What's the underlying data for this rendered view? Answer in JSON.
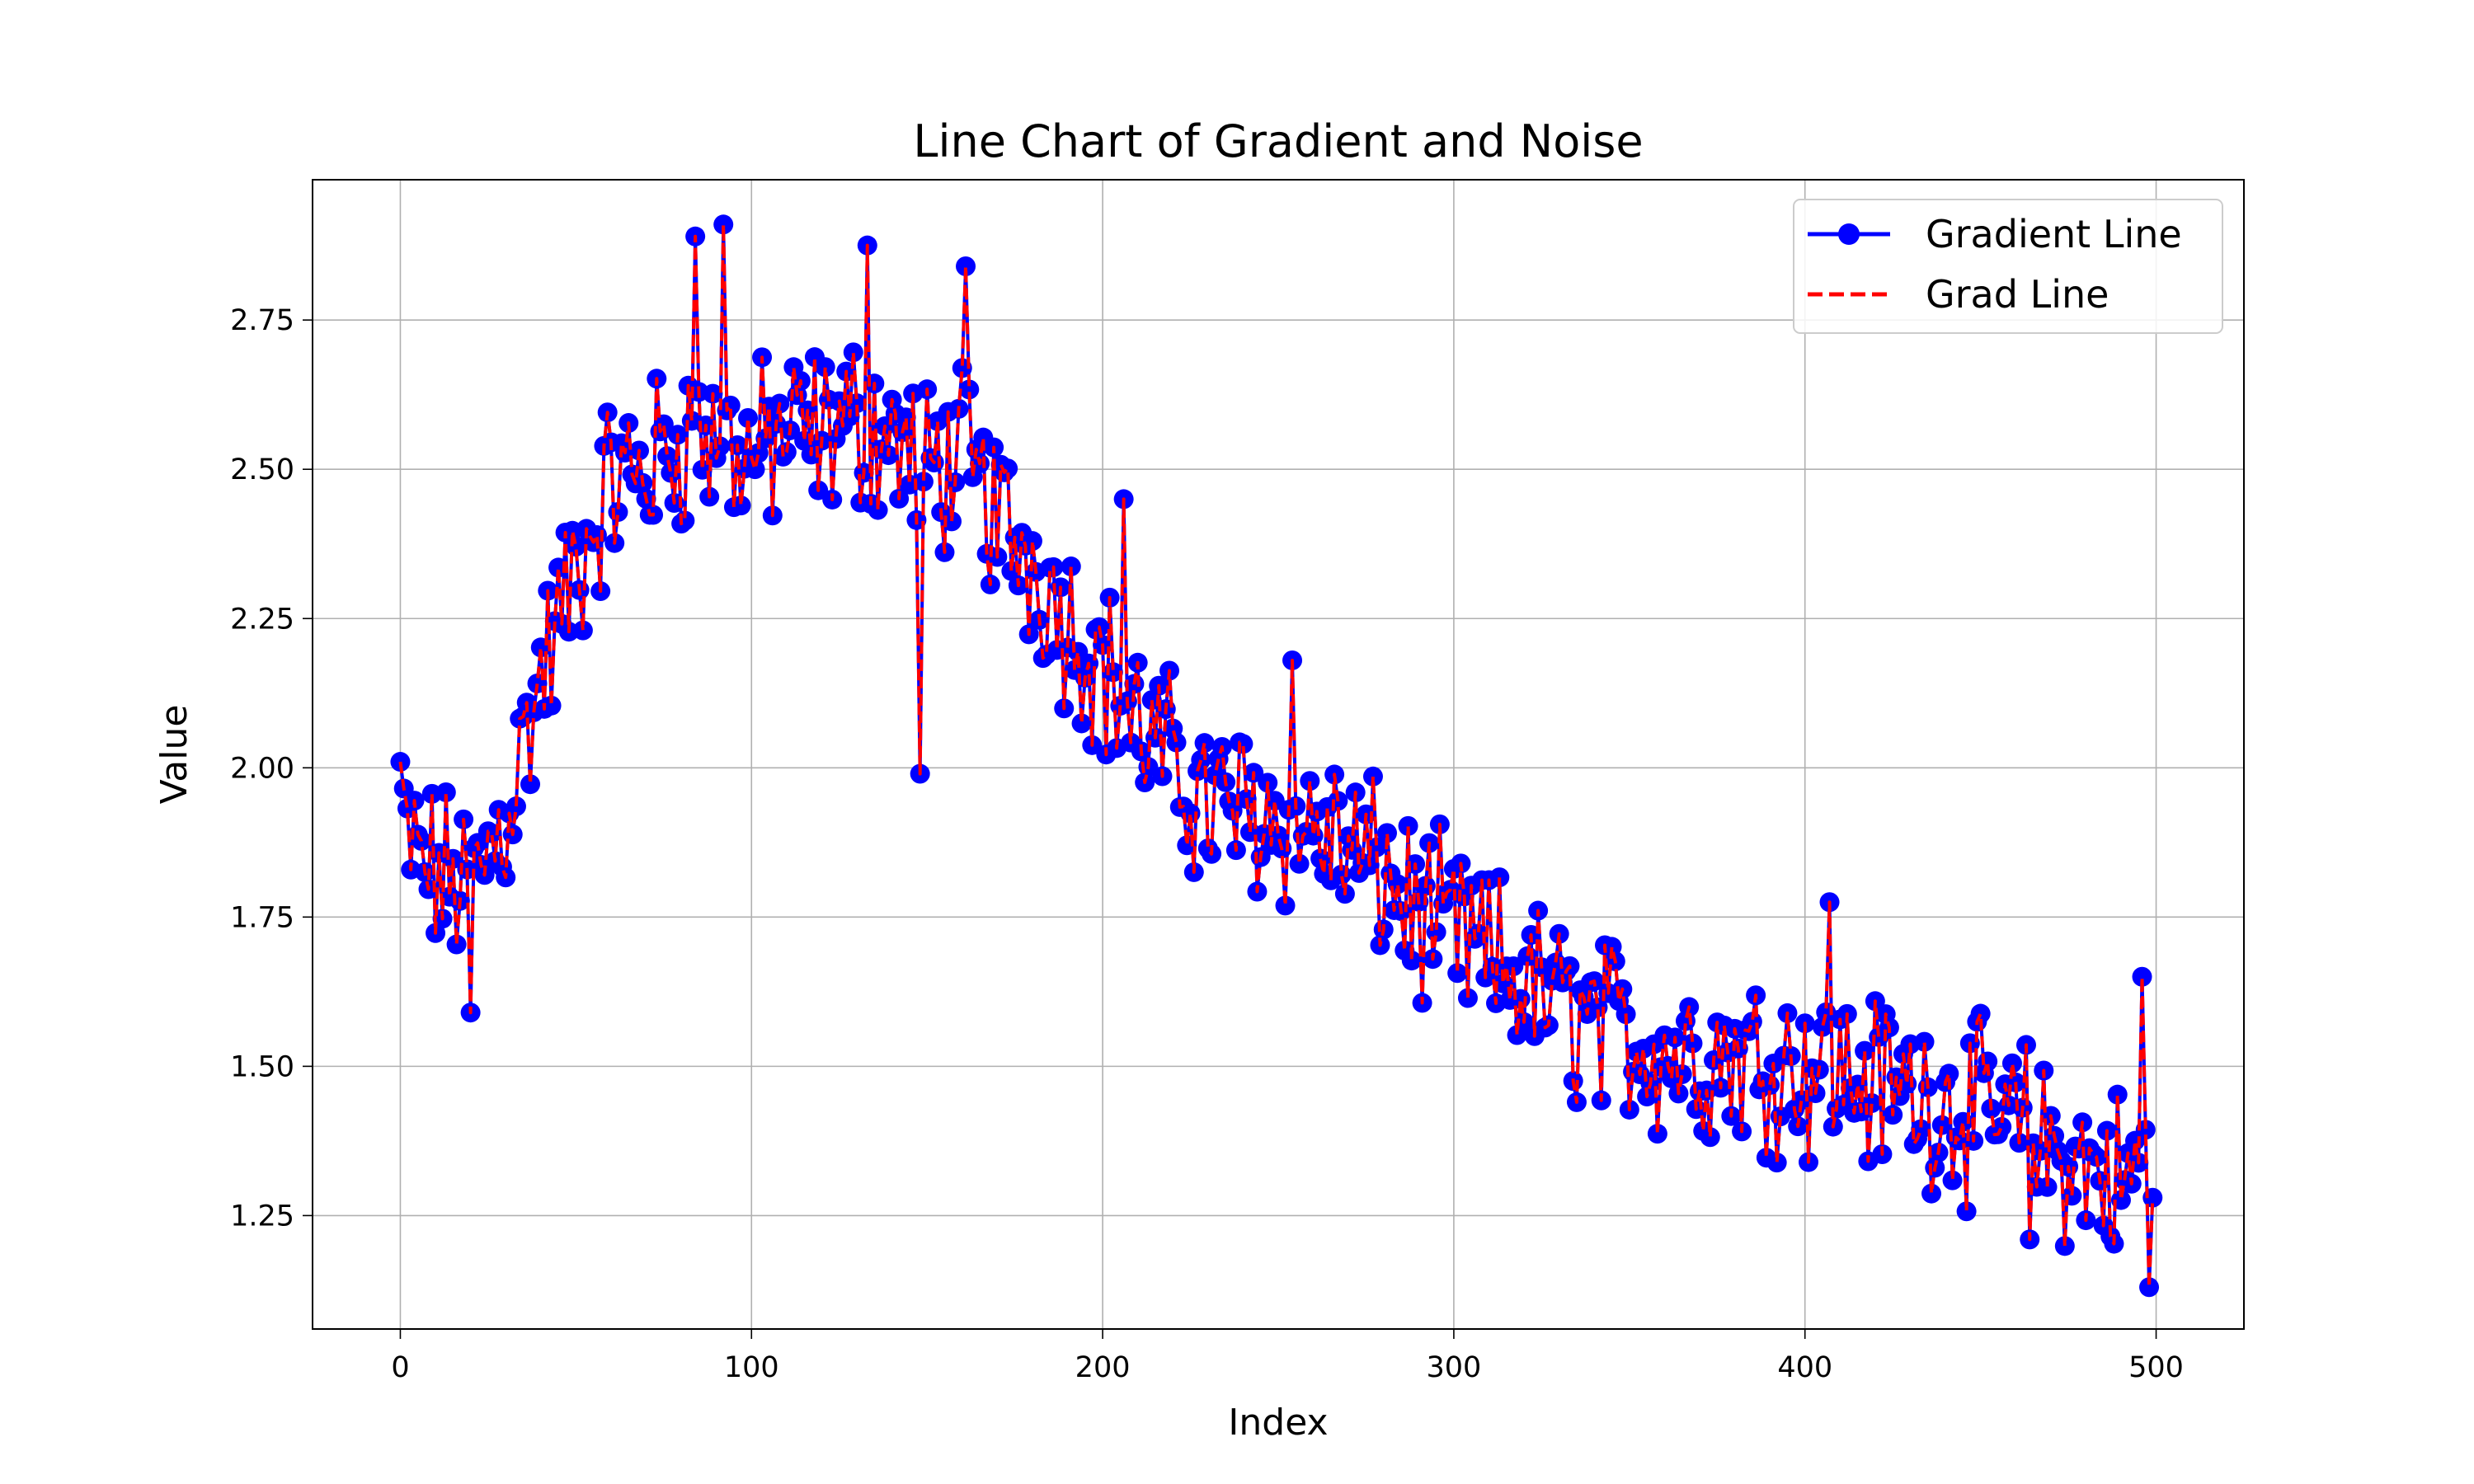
{
  "chart_data": {
    "type": "line",
    "title": "Line Chart of Gradient and Noise",
    "xlabel": "Index",
    "ylabel": "Value",
    "xlim": [
      -25,
      525
    ],
    "ylim": [
      1.06,
      2.985
    ],
    "xticks": [
      0,
      100,
      200,
      300,
      400,
      500
    ],
    "yticks": [
      1.25,
      1.5,
      1.75,
      2.0,
      2.25,
      2.5,
      2.75
    ],
    "ytick_labels": [
      "1.25",
      "1.50",
      "1.75",
      "2.00",
      "2.25",
      "2.50",
      "2.75"
    ],
    "grid": true,
    "legend_position": "top-right",
    "anchors": [
      [
        0,
        1.88
      ],
      [
        10,
        1.82
      ],
      [
        20,
        1.8
      ],
      [
        30,
        1.92
      ],
      [
        40,
        2.15
      ],
      [
        50,
        2.33
      ],
      [
        60,
        2.48
      ],
      [
        70,
        2.5
      ],
      [
        80,
        2.55
      ],
      [
        90,
        2.55
      ],
      [
        100,
        2.52
      ],
      [
        110,
        2.56
      ],
      [
        120,
        2.56
      ],
      [
        130,
        2.58
      ],
      [
        140,
        2.55
      ],
      [
        150,
        2.5
      ],
      [
        160,
        2.52
      ],
      [
        170,
        2.42
      ],
      [
        180,
        2.35
      ],
      [
        190,
        2.25
      ],
      [
        200,
        2.17
      ],
      [
        210,
        2.07
      ],
      [
        220,
        2.0
      ],
      [
        230,
        1.94
      ],
      [
        240,
        1.93
      ],
      [
        250,
        1.92
      ],
      [
        260,
        1.9
      ],
      [
        270,
        1.86
      ],
      [
        280,
        1.82
      ],
      [
        290,
        1.75
      ],
      [
        300,
        1.72
      ],
      [
        310,
        1.68
      ],
      [
        320,
        1.64
      ],
      [
        330,
        1.6
      ],
      [
        340,
        1.57
      ],
      [
        350,
        1.55
      ],
      [
        360,
        1.53
      ],
      [
        370,
        1.52
      ],
      [
        380,
        1.52
      ],
      [
        390,
        1.51
      ],
      [
        400,
        1.5
      ],
      [
        410,
        1.49
      ],
      [
        420,
        1.47
      ],
      [
        430,
        1.46
      ],
      [
        440,
        1.44
      ],
      [
        450,
        1.42
      ],
      [
        460,
        1.4
      ],
      [
        470,
        1.36
      ],
      [
        480,
        1.33
      ],
      [
        490,
        1.31
      ],
      [
        499,
        1.31
      ]
    ],
    "noise_amplitude": 0.12,
    "highlights": [
      [
        0,
        2.01
      ],
      [
        20,
        1.59
      ],
      [
        84,
        2.89
      ],
      [
        92,
        2.91
      ],
      [
        133,
        2.875
      ],
      [
        148,
        1.99
      ],
      [
        161,
        2.84
      ],
      [
        206,
        2.45
      ],
      [
        254,
        2.18
      ],
      [
        407,
        1.775
      ],
      [
        464,
        1.21
      ],
      [
        496,
        1.65
      ],
      [
        498,
        1.13
      ],
      [
        499,
        1.28
      ]
    ],
    "series": [
      {
        "name": "Gradient Line",
        "color": "#0000ff",
        "linestyle": "solid",
        "marker": "circle"
      },
      {
        "name": "Grad Line",
        "color": "#ff0000",
        "linestyle": "dashed",
        "marker": "none"
      }
    ]
  }
}
